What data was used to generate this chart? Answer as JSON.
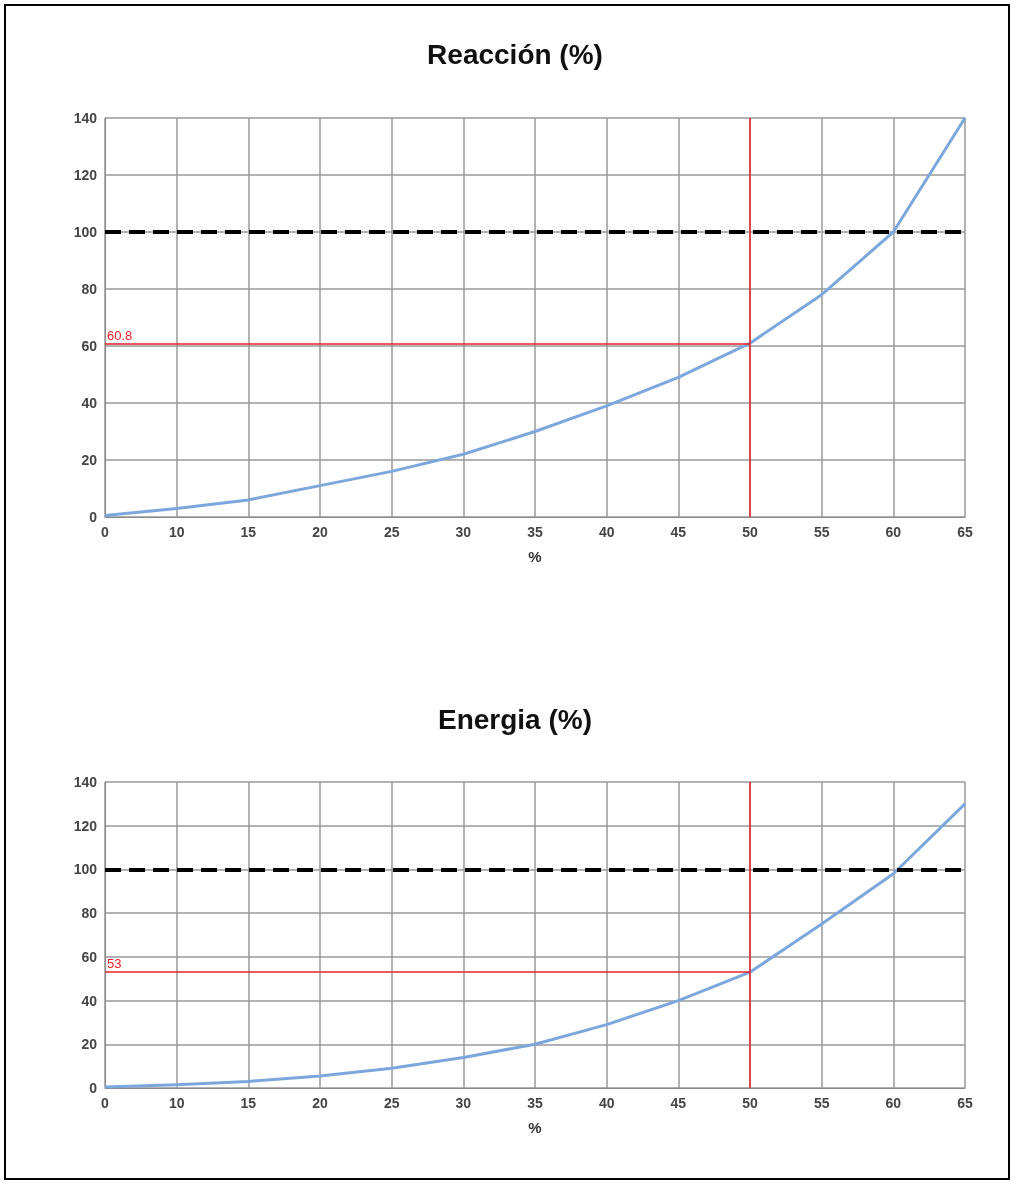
{
  "chart_data": [
    {
      "type": "line",
      "title": "Reacción (%)",
      "xlabel": "%",
      "categories": [
        "0",
        "10",
        "15",
        "20",
        "25",
        "30",
        "35",
        "40",
        "45",
        "50",
        "55",
        "60",
        "65"
      ],
      "series": [
        {
          "color": "#7ba7dc",
          "values": [
            0.5,
            3,
            6,
            11,
            16,
            22,
            30,
            39,
            49,
            61,
            78,
            100,
            140
          ]
        }
      ],
      "ylim": [
        0,
        140
      ],
      "yticks": [
        0,
        20,
        40,
        60,
        80,
        100,
        120,
        140
      ],
      "grid": true,
      "marker": "none",
      "ref_lines": [
        {
          "axis": "y",
          "value": 100,
          "color": "#000000",
          "line_style": "dashed"
        },
        {
          "axis": "y",
          "value": 60.8,
          "label": "60.8",
          "color": "#e8202a",
          "line_style": "solid"
        },
        {
          "axis": "x",
          "value": "50",
          "color": "#e8202a",
          "line_style": "solid"
        }
      ]
    },
    {
      "type": "line",
      "title": "Energia (%)",
      "xlabel": "%",
      "categories": [
        "0",
        "10",
        "15",
        "20",
        "25",
        "30",
        "35",
        "40",
        "45",
        "50",
        "55",
        "60",
        "65"
      ],
      "series": [
        {
          "color": "#7ba7dc",
          "values": [
            0.5,
            1.5,
            3,
            5.5,
            9,
            14,
            20,
            29,
            40,
            53,
            75,
            98,
            130
          ]
        }
      ],
      "ylim": [
        0,
        140
      ],
      "yticks": [
        0,
        20,
        40,
        60,
        80,
        100,
        120,
        140
      ],
      "grid": true,
      "marker": "none",
      "ref_lines": [
        {
          "axis": "y",
          "value": 100,
          "color": "#000000",
          "line_style": "dashed"
        },
        {
          "axis": "y",
          "value": 53,
          "label": "53",
          "color": "#e8202a",
          "line_style": "solid"
        },
        {
          "axis": "x",
          "value": "50",
          "color": "#e8202a",
          "line_style": "solid"
        }
      ]
    }
  ]
}
